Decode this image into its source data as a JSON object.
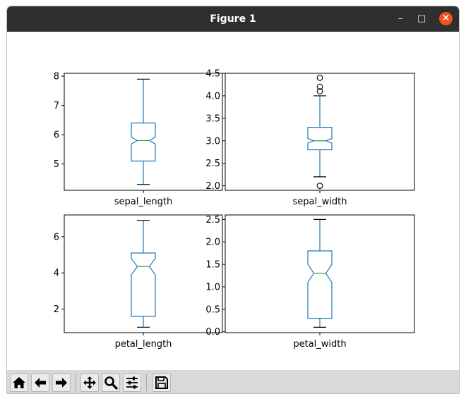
{
  "window": {
    "title": "Figure 1",
    "controls": {
      "minimize": "–",
      "maximize": "□",
      "close": "✕"
    }
  },
  "toolbar": {
    "buttons": [
      "home-icon",
      "back-icon",
      "forward-icon",
      "pan-icon",
      "zoom-icon",
      "configure-subplots-icon",
      "save-icon"
    ]
  },
  "colors": {
    "box": "#1f77b4",
    "median": "#2ca02c",
    "titlebar": "#2f2f2f",
    "close": "#e95420"
  },
  "chart_data": [
    {
      "type": "box",
      "notched": true,
      "xlabel": "sepal_length",
      "ylim": [
        4.1,
        8.1
      ],
      "yticks": [
        5,
        6,
        7,
        8
      ],
      "ytick_labels": [
        "5",
        "6",
        "7",
        "8"
      ],
      "whisker_low": 4.3,
      "q1": 5.1,
      "notch_low": 5.68,
      "median": 5.8,
      "notch_high": 5.92,
      "q3": 6.4,
      "whisker_high": 7.9,
      "outliers": []
    },
    {
      "type": "box",
      "notched": true,
      "xlabel": "sepal_width",
      "ylim": [
        1.9,
        4.5
      ],
      "yticks": [
        2.0,
        2.5,
        3.0,
        3.5,
        4.0,
        4.5
      ],
      "ytick_labels": [
        "2.0",
        "2.5",
        "3.0",
        "3.5",
        "4.0",
        "4.5"
      ],
      "whisker_low": 2.2,
      "q1": 2.8,
      "notch_low": 2.95,
      "median": 3.0,
      "notch_high": 3.05,
      "q3": 3.3,
      "whisker_high": 4.0,
      "outliers": [
        2.0,
        4.1,
        4.2,
        4.4
      ]
    },
    {
      "type": "box",
      "notched": true,
      "xlabel": "petal_length",
      "ylim": [
        0.7,
        7.2
      ],
      "yticks": [
        2,
        4,
        6
      ],
      "ytick_labels": [
        "2",
        "4",
        "6"
      ],
      "whisker_low": 1.0,
      "q1": 1.6,
      "notch_low": 3.9,
      "median": 4.35,
      "notch_high": 4.8,
      "q3": 5.1,
      "whisker_high": 6.9,
      "outliers": []
    },
    {
      "type": "box",
      "notched": true,
      "xlabel": "petal_width",
      "ylim": [
        -0.02,
        2.6
      ],
      "yticks": [
        0.0,
        0.5,
        1.0,
        1.5,
        2.0,
        2.5
      ],
      "ytick_labels": [
        "0.0",
        "0.5",
        "1.0",
        "1.5",
        "2.0",
        "2.5"
      ],
      "whisker_low": 0.1,
      "q1": 0.3,
      "notch_low": 1.1,
      "median": 1.3,
      "notch_high": 1.5,
      "q3": 1.8,
      "whisker_high": 2.5,
      "outliers": []
    }
  ]
}
